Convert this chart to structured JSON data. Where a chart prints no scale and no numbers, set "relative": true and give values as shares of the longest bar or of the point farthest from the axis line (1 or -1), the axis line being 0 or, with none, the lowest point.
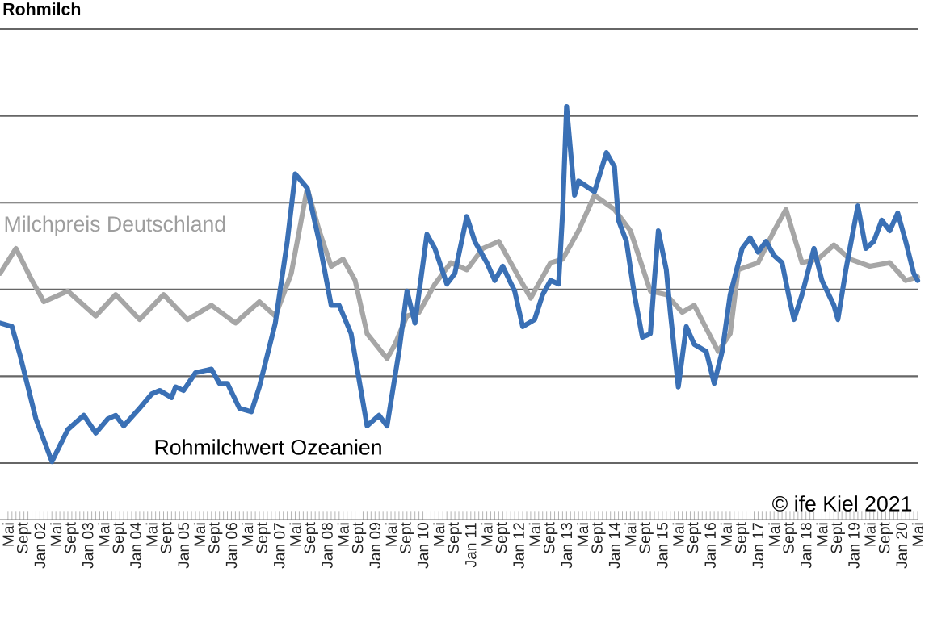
{
  "chart_data": {
    "type": "line",
    "title": "Rohmilch",
    "relative": true,
    "grid": "y",
    "xlim": [
      "2001-03",
      "2020-05"
    ],
    "xticks": [
      {
        "value": "2001-05",
        "label": "Mai"
      },
      {
        "value": "2001-09",
        "label": "Sept"
      },
      {
        "value": "2002-01",
        "label": "Jan 02"
      },
      {
        "value": "2002-05",
        "label": "Mai"
      },
      {
        "value": "2002-09",
        "label": "Sept"
      },
      {
        "value": "2003-01",
        "label": "Jan 03"
      },
      {
        "value": "2003-05",
        "label": "Mai"
      },
      {
        "value": "2003-09",
        "label": "Sept"
      },
      {
        "value": "2004-01",
        "label": "Jan 04"
      },
      {
        "value": "2004-05",
        "label": "Mai"
      },
      {
        "value": "2004-09",
        "label": "Sept"
      },
      {
        "value": "2005-01",
        "label": "Jan 05"
      },
      {
        "value": "2005-05",
        "label": "Mai"
      },
      {
        "value": "2005-09",
        "label": "Sept"
      },
      {
        "value": "2006-01",
        "label": "Jan 06"
      },
      {
        "value": "2006-05",
        "label": "Mai"
      },
      {
        "value": "2006-09",
        "label": "Sept"
      },
      {
        "value": "2007-01",
        "label": "Jan 07"
      },
      {
        "value": "2007-05",
        "label": "Mai"
      },
      {
        "value": "2007-09",
        "label": "Sept"
      },
      {
        "value": "2008-01",
        "label": "Jan 08"
      },
      {
        "value": "2008-05",
        "label": "Mai"
      },
      {
        "value": "2008-09",
        "label": "Sept"
      },
      {
        "value": "2009-01",
        "label": "Jan 09"
      },
      {
        "value": "2009-05",
        "label": "Mai"
      },
      {
        "value": "2009-09",
        "label": "Sept"
      },
      {
        "value": "2010-01",
        "label": "Jan 10"
      },
      {
        "value": "2010-05",
        "label": "Mai"
      },
      {
        "value": "2010-09",
        "label": "Sept"
      },
      {
        "value": "2011-01",
        "label": "Jan 11"
      },
      {
        "value": "2011-05",
        "label": "Mai"
      },
      {
        "value": "2011-09",
        "label": "Sept"
      },
      {
        "value": "2012-01",
        "label": "Jan 12"
      },
      {
        "value": "2012-05",
        "label": "Mai"
      },
      {
        "value": "2012-09",
        "label": "Sept"
      },
      {
        "value": "2013-01",
        "label": "Jan 13"
      },
      {
        "value": "2013-05",
        "label": "Mai"
      },
      {
        "value": "2013-09",
        "label": "Sept"
      },
      {
        "value": "2014-01",
        "label": "Jan 14"
      },
      {
        "value": "2014-05",
        "label": "Mai"
      },
      {
        "value": "2014-09",
        "label": "Sept"
      },
      {
        "value": "2015-01",
        "label": "Jan 15"
      },
      {
        "value": "2015-05",
        "label": "Mai"
      },
      {
        "value": "2015-09",
        "label": "Sept"
      },
      {
        "value": "2016-01",
        "label": "Jan 16"
      },
      {
        "value": "2016-05",
        "label": "Mai"
      },
      {
        "value": "2016-09",
        "label": "Sept"
      },
      {
        "value": "2017-01",
        "label": "Jan 17"
      },
      {
        "value": "2017-05",
        "label": "Mai"
      },
      {
        "value": "2017-09",
        "label": "Sept"
      },
      {
        "value": "2018-01",
        "label": "Jan 18"
      },
      {
        "value": "2018-05",
        "label": "Mai"
      },
      {
        "value": "2018-09",
        "label": "Sept"
      },
      {
        "value": "2019-01",
        "label": "Jan 19"
      },
      {
        "value": "2019-05",
        "label": "Mai"
      },
      {
        "value": "2019-09",
        "label": "Sept"
      },
      {
        "value": "2020-01",
        "label": "Jan 20"
      },
      {
        "value": "2020-05",
        "label": "Mai"
      }
    ],
    "annotations": [
      "© ife Kiel 2021"
    ],
    "series": [
      {
        "name": "Milchpreis Deutschland",
        "color": "#a6a6a6",
        "x": [
          "2001-03",
          "2001-07",
          "2001-11",
          "2002-02",
          "2002-08",
          "2003-03",
          "2003-08",
          "2004-02",
          "2004-08",
          "2005-02",
          "2005-08",
          "2006-02",
          "2006-08",
          "2006-12",
          "2007-04",
          "2007-08",
          "2007-11",
          "2008-02",
          "2008-05",
          "2008-08",
          "2008-11",
          "2009-04",
          "2009-06",
          "2009-09",
          "2009-12",
          "2010-04",
          "2010-08",
          "2010-12",
          "2011-04",
          "2011-08",
          "2011-12",
          "2012-04",
          "2012-09",
          "2012-12",
          "2013-04",
          "2013-08",
          "2014-01",
          "2014-05",
          "2014-10",
          "2015-02",
          "2015-06",
          "2015-09",
          "2016-03",
          "2016-06",
          "2016-08",
          "2017-01",
          "2017-05",
          "2017-08",
          "2017-12",
          "2018-04",
          "2018-08",
          "2018-12",
          "2019-05",
          "2019-10",
          "2020-02",
          "2020-05"
        ],
        "values": [
          0.53,
          0.6,
          0.51,
          0.45,
          0.48,
          0.41,
          0.47,
          0.4,
          0.47,
          0.4,
          0.44,
          0.39,
          0.45,
          0.41,
          0.53,
          0.77,
          0.65,
          0.55,
          0.57,
          0.51,
          0.36,
          0.29,
          0.33,
          0.41,
          0.42,
          0.5,
          0.56,
          0.54,
          0.6,
          0.62,
          0.54,
          0.46,
          0.56,
          0.57,
          0.65,
          0.75,
          0.71,
          0.65,
          0.48,
          0.47,
          0.42,
          0.44,
          0.31,
          0.36,
          0.54,
          0.56,
          0.65,
          0.71,
          0.56,
          0.57,
          0.61,
          0.57,
          0.55,
          0.56,
          0.51,
          0.52
        ]
      },
      {
        "name": "Rohmilchwert Ozeanien",
        "color": "#3a70b5",
        "x": [
          "2001-03",
          "2001-06",
          "2001-08",
          "2001-10",
          "2001-12",
          "2002-04",
          "2002-08",
          "2002-12",
          "2003-03",
          "2003-06",
          "2003-08",
          "2003-10",
          "2004-02",
          "2004-05",
          "2004-07",
          "2004-10",
          "2004-11",
          "2005-01",
          "2005-04",
          "2005-08",
          "2005-10",
          "2005-12",
          "2006-03",
          "2006-06",
          "2006-08",
          "2006-12",
          "2007-03",
          "2007-05",
          "2007-08",
          "2007-11",
          "2008-02",
          "2008-04",
          "2008-07",
          "2008-11",
          "2009-02",
          "2009-04",
          "2009-07",
          "2009-09",
          "2009-11",
          "2010-02",
          "2010-04",
          "2010-07",
          "2010-09",
          "2010-12",
          "2011-02",
          "2011-05",
          "2011-07",
          "2011-09",
          "2011-12",
          "2012-02",
          "2012-05",
          "2012-07",
          "2012-09",
          "2012-11",
          "2012-12",
          "2013-01",
          "2013-03",
          "2013-04",
          "2013-08",
          "2013-11",
          "2014-01",
          "2014-02",
          "2014-04",
          "2014-06",
          "2014-08",
          "2014-10",
          "2014-11",
          "2014-12",
          "2015-02",
          "2015-03",
          "2015-05",
          "2015-07",
          "2015-09",
          "2015-12",
          "2016-02",
          "2016-04",
          "2016-06",
          "2016-09",
          "2016-11",
          "2017-01",
          "2017-03",
          "2017-05",
          "2017-07",
          "2017-09",
          "2017-10",
          "2017-12",
          "2018-03",
          "2018-05",
          "2018-08",
          "2018-09",
          "2018-11",
          "2019-02",
          "2019-04",
          "2019-06",
          "2019-08",
          "2019-10",
          "2019-12",
          "2020-02",
          "2020-04",
          "2020-05"
        ],
        "values": [
          0.39,
          0.38,
          0.3,
          0.21,
          0.12,
          0,
          0.09,
          0.13,
          0.08,
          0.12,
          0.13,
          0.1,
          0.15,
          0.19,
          0.2,
          0.18,
          0.21,
          0.2,
          0.25,
          0.26,
          0.22,
          0.22,
          0.15,
          0.14,
          0.21,
          0.39,
          0.62,
          0.81,
          0.77,
          0.62,
          0.44,
          0.44,
          0.36,
          0.1,
          0.13,
          0.1,
          0.31,
          0.48,
          0.39,
          0.64,
          0.6,
          0.5,
          0.53,
          0.69,
          0.62,
          0.56,
          0.51,
          0.55,
          0.48,
          0.38,
          0.4,
          0.47,
          0.51,
          0.5,
          0.7,
          1,
          0.75,
          0.79,
          0.76,
          0.87,
          0.83,
          0.68,
          0.62,
          0.47,
          0.35,
          0.36,
          0.51,
          0.65,
          0.54,
          0.42,
          0.21,
          0.38,
          0.33,
          0.31,
          0.22,
          0.31,
          0.47,
          0.6,
          0.63,
          0.59,
          0.62,
          0.58,
          0.56,
          0.45,
          0.4,
          0.47,
          0.6,
          0.51,
          0.44,
          0.4,
          0.54,
          0.72,
          0.6,
          0.62,
          0.68,
          0.65,
          0.7,
          0.62,
          0.53,
          0.51
        ]
      }
    ]
  }
}
